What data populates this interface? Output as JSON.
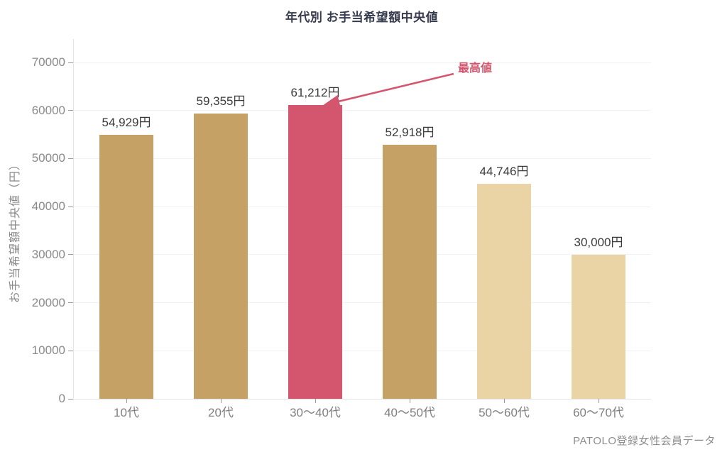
{
  "chart_data": {
    "type": "bar",
    "title": "年代別 お手当希望額中央値",
    "categories": [
      "10代",
      "20代",
      "30〜40代",
      "40〜50代",
      "50〜60代",
      "60〜70代"
    ],
    "values": [
      54929,
      59355,
      61212,
      52918,
      44746,
      30000
    ],
    "value_labels": [
      "54,929円",
      "59,355円",
      "61,212円",
      "52,918円",
      "44,746円",
      "30,000円"
    ],
    "bar_colors": [
      "#c6a166",
      "#c6a166",
      "#d4556e",
      "#c6a166",
      "#ead3a4",
      "#ead3a4"
    ],
    "highlight_index": 2,
    "xlabel": "",
    "ylabel": "お手当希望額中央値（円）",
    "ylim": [
      0,
      70000
    ],
    "yticks": [
      0,
      10000,
      20000,
      30000,
      40000,
      50000,
      60000,
      70000
    ],
    "grid": true,
    "legend": "none",
    "annotation": {
      "text": "最高値",
      "target_category": "30〜40代",
      "color": "#d4566e"
    },
    "source": "PATOLO登録女性会員データ"
  },
  "colors": {
    "bar_default": "#c6a166",
    "bar_light": "#ead3a4",
    "bar_highlight": "#d4556e",
    "annotation": "#d4566e",
    "title_text": "#363b4e",
    "axis_text": "#8a8a8a",
    "value_text": "#3a3a3a",
    "gridline": "#f1f1f5",
    "axis_line": "#e3e3ea"
  }
}
